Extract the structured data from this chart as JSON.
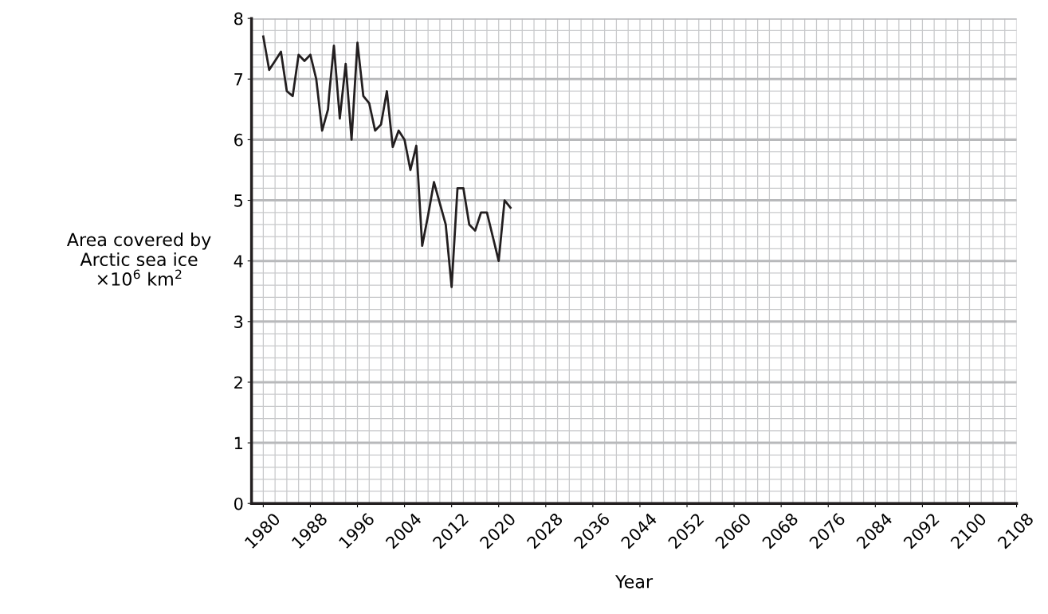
{
  "chart_data": {
    "type": "line",
    "xlabel": "Year",
    "ylabel": "Area covered by\nArctic sea ice\n×10$^{6}$ km$^{2}$",
    "x": [
      1980,
      1981,
      1982,
      1983,
      1984,
      1985,
      1986,
      1987,
      1988,
      1989,
      1990,
      1991,
      1991.2,
      1992,
      1993,
      1994,
      1995,
      1996,
      1997,
      1998,
      1999,
      2000,
      2001,
      2002,
      2003,
      2004,
      2005,
      2006,
      2007,
      2008,
      2009,
      2010,
      2011,
      2012,
      2013,
      2014,
      2015,
      2016,
      2017,
      2018,
      2019,
      2020,
      2021,
      2022
    ],
    "series": [
      {
        "color": "#231f20",
        "values": [
          7.7,
          7.15,
          7.3,
          7.45,
          6.8,
          6.72,
          7.4,
          7.3,
          7.4,
          7.0,
          6.15,
          6.5,
          6.75,
          7.55,
          6.35,
          7.25,
          6.0,
          7.6,
          6.72,
          6.6,
          6.15,
          6.25,
          6.8,
          5.88,
          6.15,
          6.0,
          5.5,
          5.9,
          4.25,
          4.75,
          5.3,
          4.95,
          4.6,
          3.57,
          5.2,
          5.2,
          4.6,
          4.5,
          4.8,
          4.8,
          4.4,
          4.0,
          5.0,
          4.88
        ]
      }
    ],
    "xlim": [
      1978,
      2108
    ],
    "xticks": [
      1980,
      1988,
      1996,
      2004,
      2012,
      2020,
      2028,
      2036,
      2044,
      2052,
      2060,
      2068,
      2076,
      2084,
      2092,
      2100,
      2108
    ],
    "ylim": [
      0,
      8
    ],
    "yticks": [
      0,
      1,
      2,
      3,
      4,
      5,
      6,
      7,
      8
    ],
    "grid": true,
    "marker": "none",
    "line_style": "solid"
  }
}
